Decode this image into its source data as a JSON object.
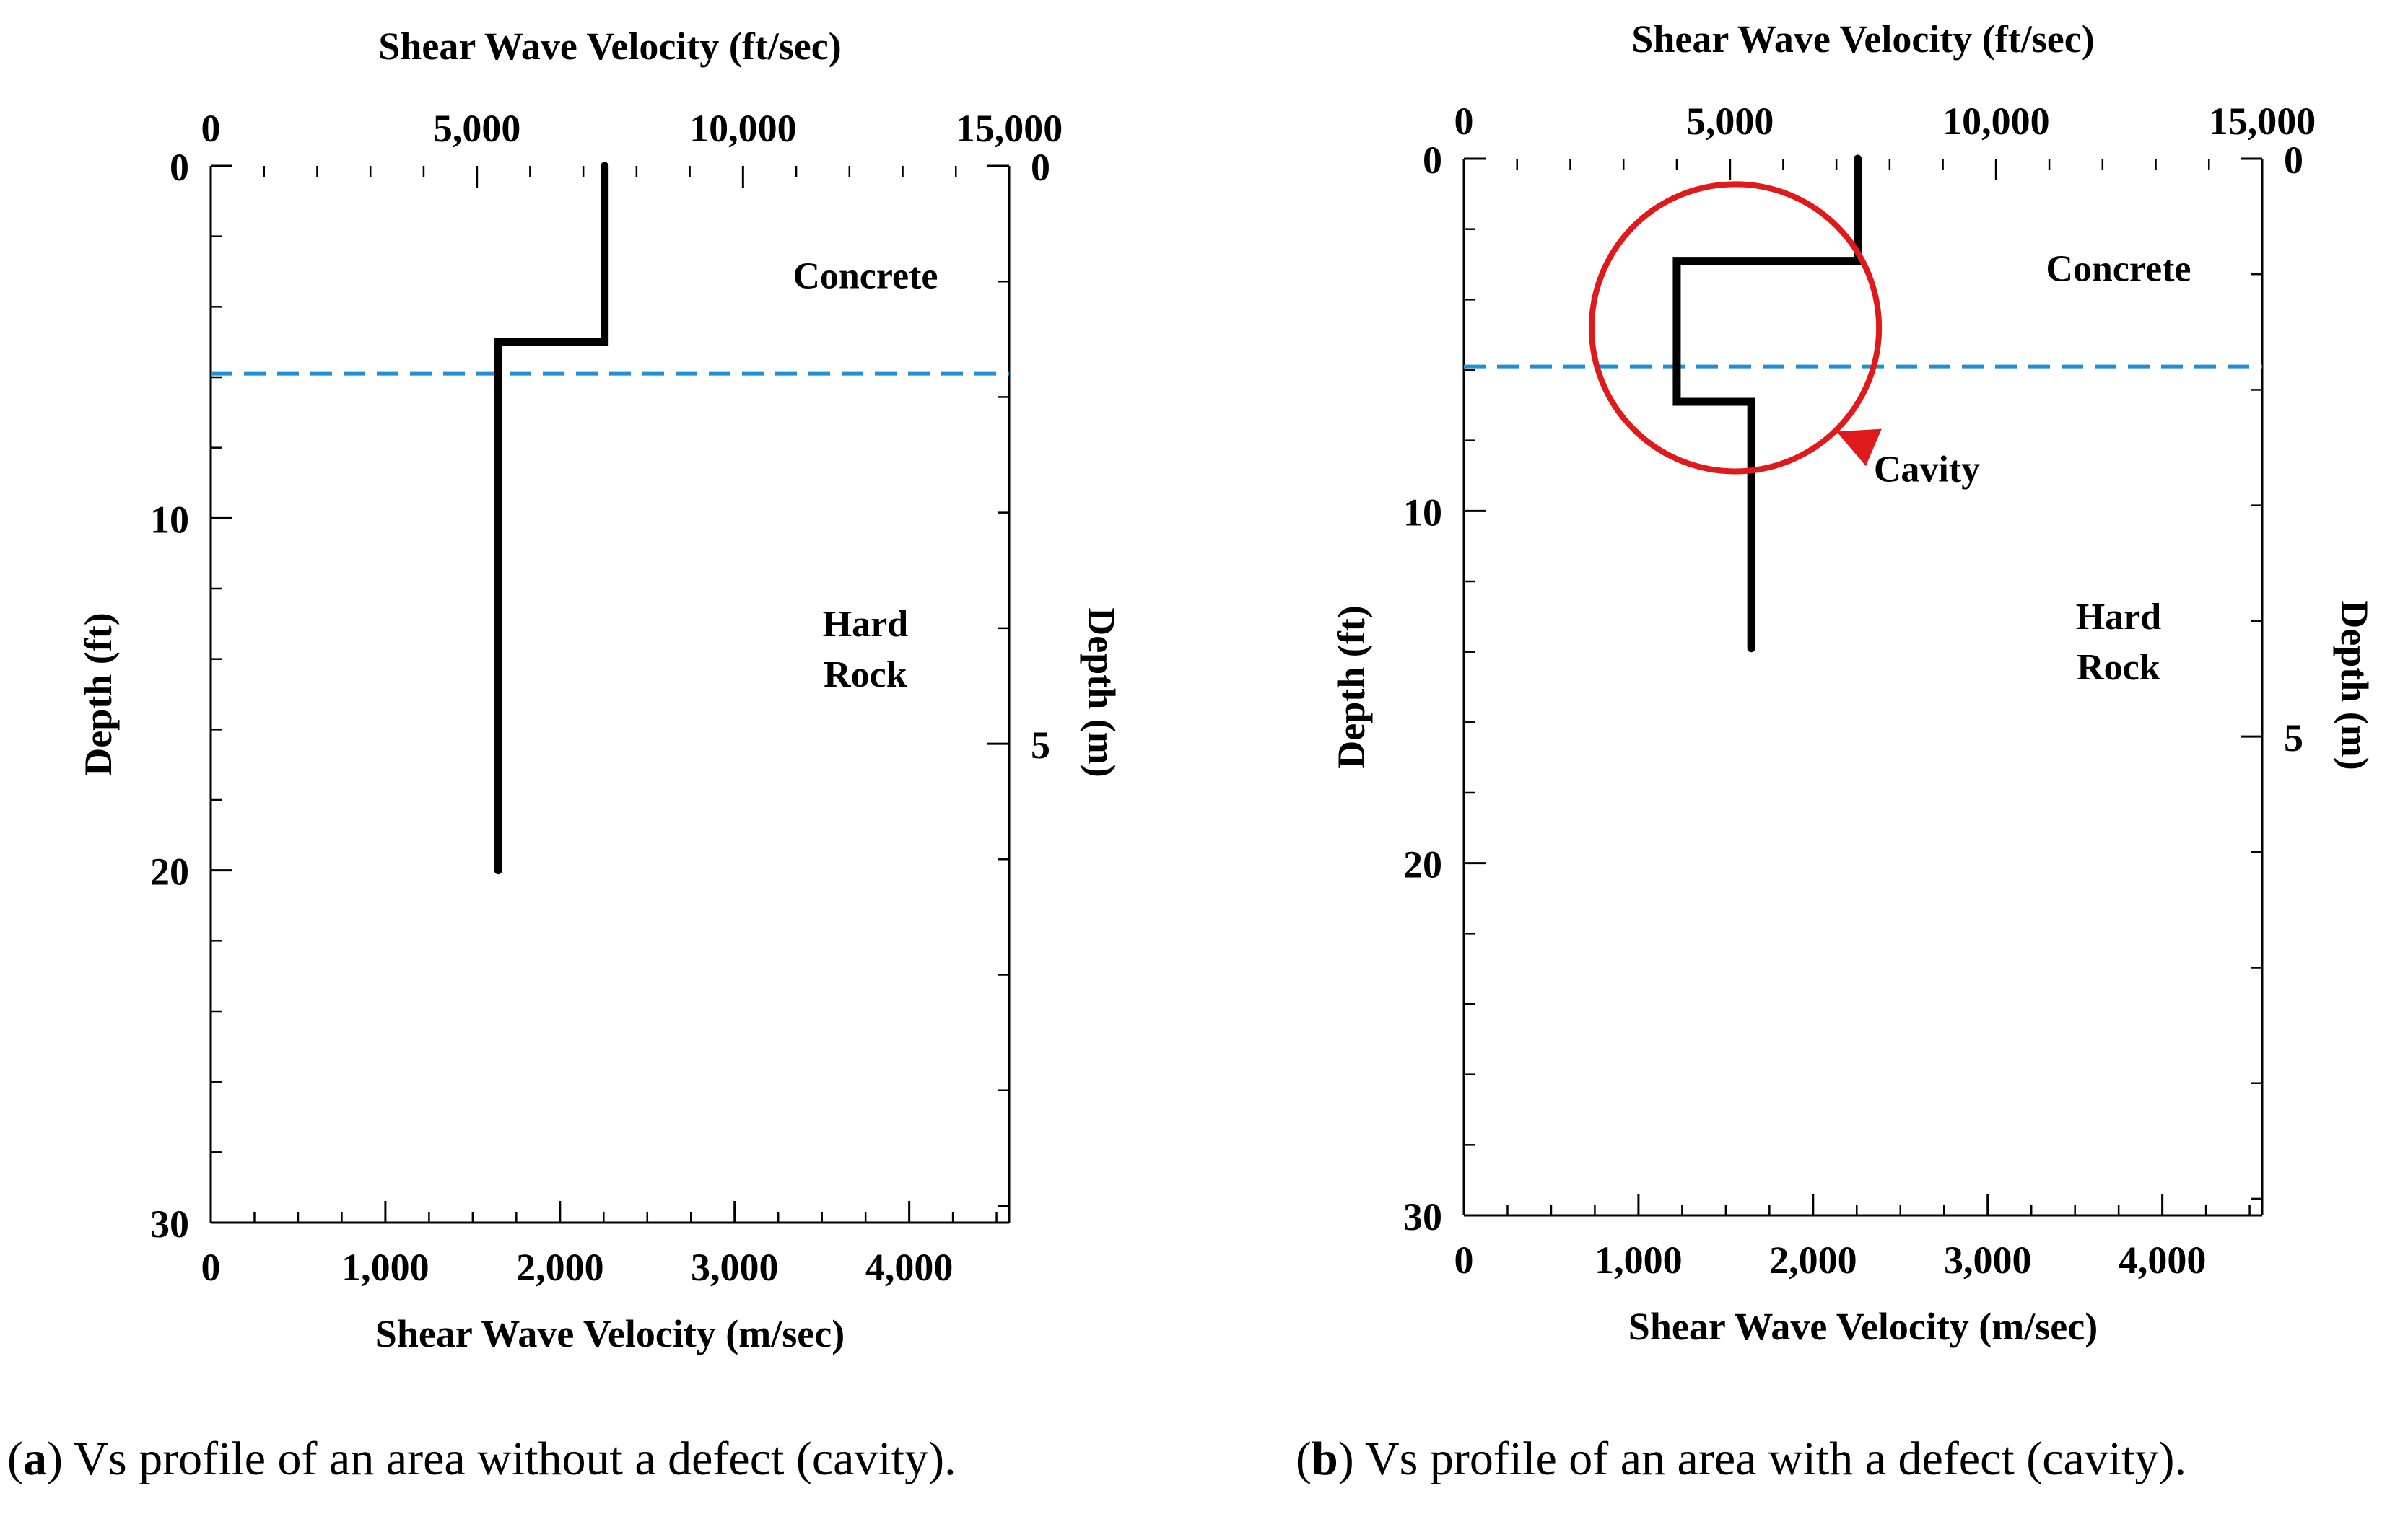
{
  "chart_data": [
    {
      "id": "a",
      "type": "line",
      "title": "",
      "xlabel_top": "Shear Wave Velocity (ft/sec)",
      "xlabel_bottom": "Shear Wave Velocity (m/sec)",
      "ylabel_left": "Depth (ft)",
      "ylabel_right": "Depth (m)",
      "x_ft_ticks": [
        0,
        5000,
        10000,
        15000
      ],
      "x_ft_tick_labels": [
        "0",
        "5,000",
        "10,000",
        "15,000"
      ],
      "x_ms_ticks": [
        0,
        1000,
        2000,
        3000,
        4000
      ],
      "x_ms_tick_labels": [
        "0",
        "1,000",
        "2,000",
        "3,000",
        "4,000"
      ],
      "x_ms_lim": [
        0,
        4572
      ],
      "y_ft_ticks": [
        0,
        10,
        20,
        30
      ],
      "y_ft_tick_labels": [
        "0",
        "10",
        "20",
        "30"
      ],
      "y_ft_lim": [
        0,
        30
      ],
      "y_m_ticks": [
        0,
        5
      ],
      "y_m_tick_labels": [
        "0",
        "5"
      ],
      "grid": false,
      "series": [
        {
          "name": "Vs profile",
          "color": "#000000",
          "points_ft": [
            {
              "x": 7400,
              "y": 0
            },
            {
              "x": 7400,
              "y": 5
            },
            {
              "x": 5400,
              "y": 5
            },
            {
              "x": 5400,
              "y": 20
            }
          ]
        }
      ],
      "interface": {
        "name": "Concrete/rock interface",
        "depth_ft": 5.9,
        "color": "#1f8fd6"
      },
      "regions": [
        {
          "label_lines": [
            "Concrete"
          ],
          "x_ft": 12300,
          "depth_ft": 3.1
        },
        {
          "label_lines": [
            "Hard",
            "Rock"
          ],
          "x_ft": 12300,
          "depth_ft": 13.7
        }
      ],
      "annotation": null,
      "caption": {
        "letter": "a",
        "text": " Vs profile of an area without a defect (cavity)."
      }
    },
    {
      "id": "b",
      "type": "line",
      "title": "",
      "xlabel_top": "Shear Wave Velocity (ft/sec)",
      "xlabel_bottom": "Shear Wave Velocity (m/sec)",
      "ylabel_left": "Depth (ft)",
      "ylabel_right": "Depth (m)",
      "x_ft_ticks": [
        0,
        5000,
        10000,
        15000
      ],
      "x_ft_tick_labels": [
        "0",
        "5,000",
        "10,000",
        "15,000"
      ],
      "x_ms_ticks": [
        0,
        1000,
        2000,
        3000,
        4000
      ],
      "x_ms_tick_labels": [
        "0",
        "1,000",
        "2,000",
        "3,000",
        "4,000"
      ],
      "x_ms_lim": [
        0,
        4572
      ],
      "y_ft_ticks": [
        0,
        10,
        20,
        30
      ],
      "y_ft_tick_labels": [
        "0",
        "10",
        "20",
        "30"
      ],
      "y_ft_lim": [
        0,
        30
      ],
      "y_m_ticks": [
        0,
        5
      ],
      "y_m_tick_labels": [
        "0",
        "5"
      ],
      "grid": false,
      "series": [
        {
          "name": "Vs profile",
          "color": "#000000",
          "points_ft": [
            {
              "x": 7400,
              "y": 0
            },
            {
              "x": 7400,
              "y": 2.9
            },
            {
              "x": 4000,
              "y": 2.9
            },
            {
              "x": 4000,
              "y": 6.9
            },
            {
              "x": 5400,
              "y": 6.9
            },
            {
              "x": 5400,
              "y": 13.9
            }
          ]
        }
      ],
      "interface": {
        "name": "Concrete/rock interface",
        "depth_ft": 5.9,
        "color": "#1f8fd6"
      },
      "regions": [
        {
          "label_lines": [
            "Concrete"
          ],
          "x_ft": 12300,
          "depth_ft": 3.1
        },
        {
          "label_lines": [
            "Hard",
            "Rock"
          ],
          "x_ft": 12300,
          "depth_ft": 13.7
        }
      ],
      "annotation": {
        "label": "Cavity",
        "color": "#e0191a",
        "circle_center_x_ft": 5100,
        "circle_center_depth_ft": 4.8,
        "circle_radius_ft": 2700,
        "label_x_ft": 8700,
        "label_depth_ft": 8.8
      },
      "caption": {
        "letter": "b",
        "text": " Vs profile of an area with a defect (cavity)."
      }
    }
  ]
}
